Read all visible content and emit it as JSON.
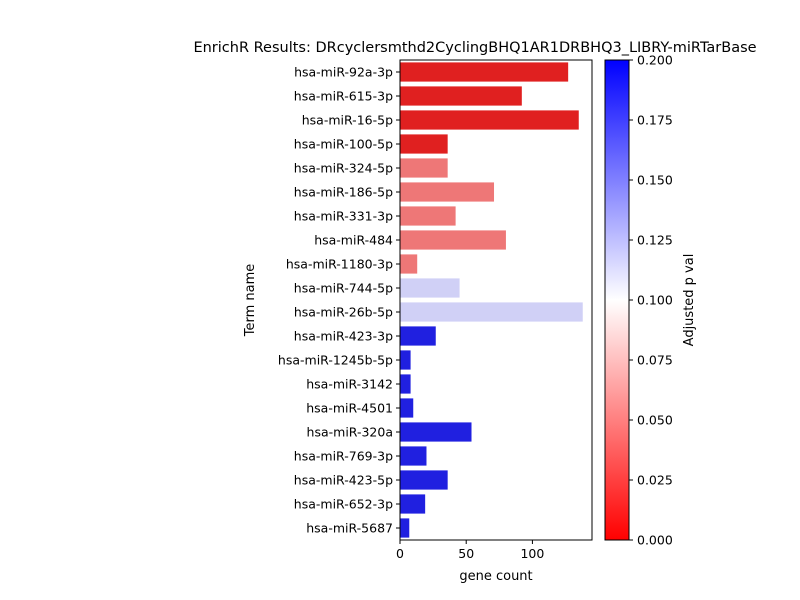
{
  "chart_data": {
    "type": "bar",
    "orientation": "horizontal",
    "title": "EnrichR Results: DRcyclersmthd2CyclingBHQ1AR1DRBHQ3_LIBRY-miRTarBase",
    "xlabel": "gene count",
    "ylabel": "Term name",
    "xlim": [
      0,
      145
    ],
    "x_ticks": [
      0,
      50,
      100
    ],
    "grid": false,
    "categories": [
      "hsa-miR-92a-3p",
      "hsa-miR-615-3p",
      "hsa-miR-16-5p",
      "hsa-miR-100-5p",
      "hsa-miR-324-5p",
      "hsa-miR-186-5p",
      "hsa-miR-331-3p",
      "hsa-miR-484",
      "hsa-miR-1180-3p",
      "hsa-miR-744-5p",
      "hsa-miR-26b-5p",
      "hsa-miR-423-3p",
      "hsa-miR-1245b-5p",
      "hsa-miR-3142",
      "hsa-miR-4501",
      "hsa-miR-320a",
      "hsa-miR-769-3p",
      "hsa-miR-423-5p",
      "hsa-miR-652-3p",
      "hsa-miR-5687"
    ],
    "values": [
      127,
      92,
      135,
      36,
      36,
      71,
      42,
      80,
      13,
      45,
      138,
      27,
      8,
      8,
      10,
      54,
      20,
      36,
      19,
      7
    ],
    "bar_colors": [
      "#e02020",
      "#e02020",
      "#e02020",
      "#e02020",
      "#ee7777",
      "#ee7777",
      "#ee7777",
      "#ee7777",
      "#ee7777",
      "#d0d0f6",
      "#d0d0f6",
      "#2020e0",
      "#2020e0",
      "#2020e0",
      "#2020e0",
      "#2020e0",
      "#2020e0",
      "#2020e0",
      "#2020e0",
      "#2020e0"
    ],
    "colorbar": {
      "label": "Adjusted p val",
      "range": [
        0,
        0.2
      ],
      "ticks": [
        "0.000",
        "0.025",
        "0.050",
        "0.075",
        "0.100",
        "0.125",
        "0.150",
        "0.175",
        "0.200"
      ],
      "colors": [
        "#ff0000",
        "#ffffff",
        "#0000ff"
      ]
    }
  }
}
